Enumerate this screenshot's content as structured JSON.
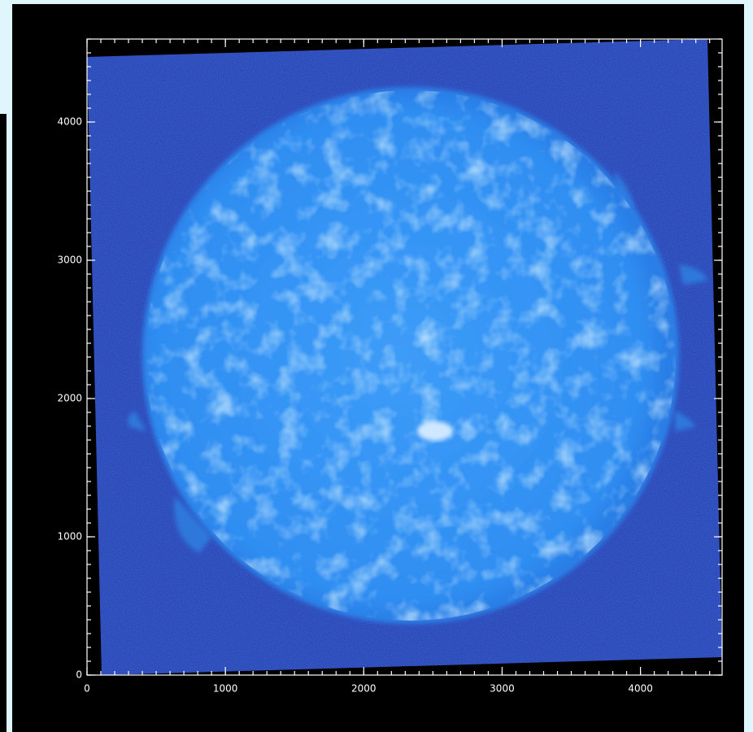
{
  "chart_data": {
    "type": "image",
    "xlim": [
      0,
      4590
    ],
    "ylim": [
      0,
      4600
    ],
    "xticks": [
      0,
      1000,
      2000,
      3000,
      4000
    ],
    "yticks": [
      0,
      1000,
      2000,
      3000,
      4000
    ],
    "minor_ticks": 100
  }
}
